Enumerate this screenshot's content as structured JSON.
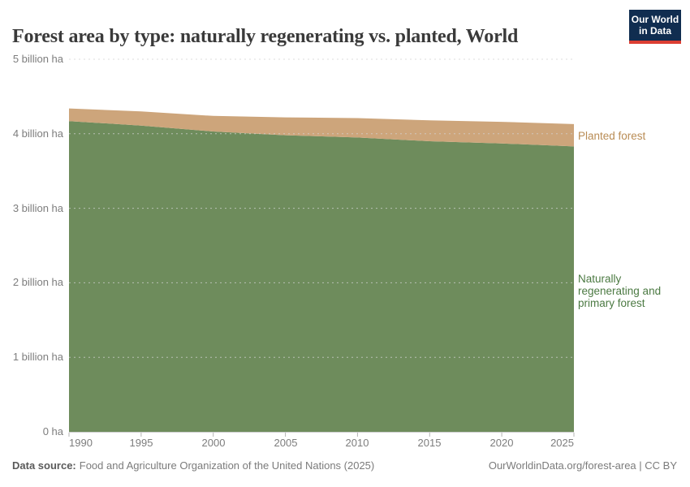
{
  "header": {
    "title": "Forest area by type: naturally regenerating vs. planted, World",
    "logo_line1": "Our World",
    "logo_line2": "in Data",
    "logo_bg": "#102d50",
    "logo_accent": "#dc3e33"
  },
  "chart_data": {
    "type": "area",
    "stacked": true,
    "x": [
      1990,
      1995,
      2000,
      2005,
      2010,
      2015,
      2020,
      2025
    ],
    "series": [
      {
        "name": "Naturally regenerating and primary forest",
        "color": "#6e8c5c",
        "label_color": "#4c7a43",
        "values": [
          4.17,
          4.11,
          4.03,
          3.98,
          3.95,
          3.9,
          3.87,
          3.83
        ]
      },
      {
        "name": "Planted forest",
        "color": "#cda57b",
        "label_color": "#b98c55",
        "values": [
          0.17,
          0.19,
          0.21,
          0.24,
          0.26,
          0.28,
          0.29,
          0.3
        ]
      }
    ],
    "unit": "billion ha",
    "ylim": [
      0,
      5
    ],
    "xlim": [
      1990,
      2025
    ],
    "grid": "dashed horizontal",
    "legend_position": "right of chart, inline labels",
    "y_ticks": [
      {
        "value": 0,
        "label": "0 ha"
      },
      {
        "value": 1,
        "label": "1 billion ha"
      },
      {
        "value": 2,
        "label": "2 billion ha"
      },
      {
        "value": 3,
        "label": "3 billion ha"
      },
      {
        "value": 4,
        "label": "4 billion ha"
      },
      {
        "value": 5,
        "label": "5 billion ha"
      }
    ]
  },
  "labels": {
    "planted": "Planted forest",
    "natural_lines": [
      "Naturally",
      "regenerating and",
      "primary forest"
    ]
  },
  "footer": {
    "source_label": "Data source:",
    "source_text": "Food and Agriculture Organization of the United Nations (2025)",
    "credit": "OurWorldinData.org/forest-area | CC BY"
  }
}
